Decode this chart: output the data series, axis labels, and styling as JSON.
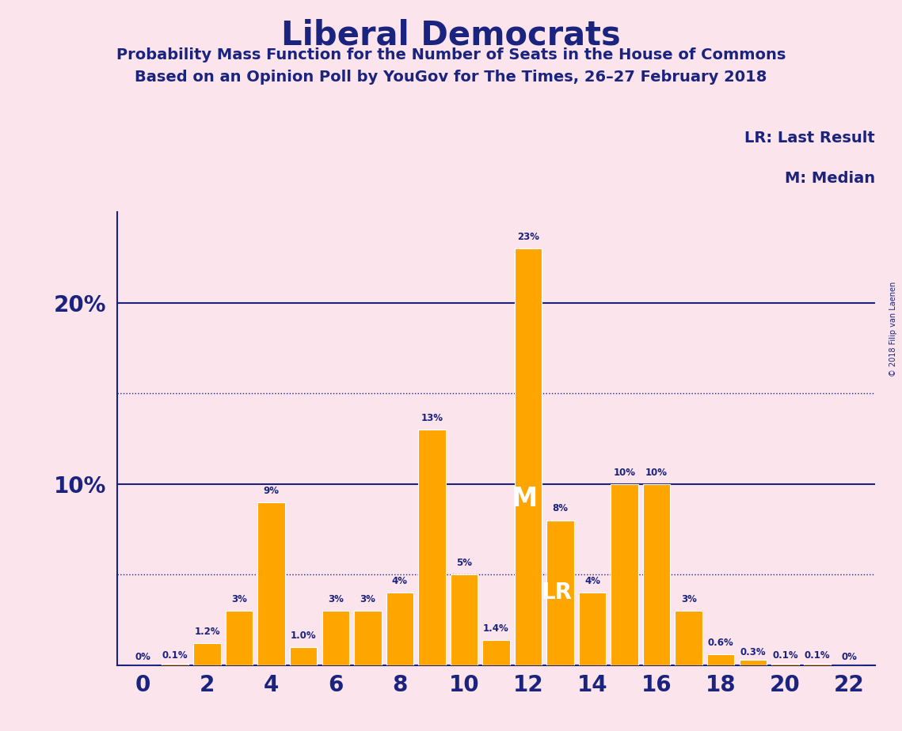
{
  "title": "Liberal Democrats",
  "subtitle1": "Probability Mass Function for the Number of Seats in the House of Commons",
  "subtitle2": "Based on an Opinion Poll by YouGov for The Times, 26–27 February 2018",
  "watermark": "© 2018 Filip van Laenen",
  "legend_lr": "LR: Last Result",
  "legend_m": "M: Median",
  "background_color": "#fce4ec",
  "bar_color": "#FFA500",
  "text_color": "#1a237e",
  "seats": [
    0,
    1,
    2,
    3,
    4,
    5,
    6,
    7,
    8,
    9,
    10,
    11,
    12,
    13,
    14,
    15,
    16,
    17,
    18,
    19,
    20,
    21,
    22
  ],
  "probabilities": [
    0.0,
    0.1,
    1.2,
    3.0,
    9.0,
    1.0,
    3.0,
    3.0,
    4.0,
    13.0,
    5.0,
    1.4,
    23.0,
    8.0,
    4.0,
    10.0,
    10.0,
    3.0,
    0.6,
    0.3,
    0.1,
    0.1,
    0.0
  ],
  "labels": [
    "0%",
    "0.1%",
    "1.2%",
    "3%",
    "9%",
    "1.0%",
    "3%",
    "3%",
    "4%",
    "13%",
    "5%",
    "1.4%",
    "23%",
    "8%",
    "4%",
    "10%",
    "10%",
    "3%",
    "0.6%",
    "0.3%",
    "0.1%",
    "0.1%",
    "0%"
  ],
  "last_result_seat": 13,
  "median_seat": 12,
  "dotted_lines": [
    5.0,
    15.0
  ],
  "solid_lines": [
    10.0,
    20.0
  ],
  "ylim": [
    0,
    25
  ],
  "xticks": [
    0,
    2,
    4,
    6,
    8,
    10,
    12,
    14,
    16,
    18,
    20,
    22
  ]
}
